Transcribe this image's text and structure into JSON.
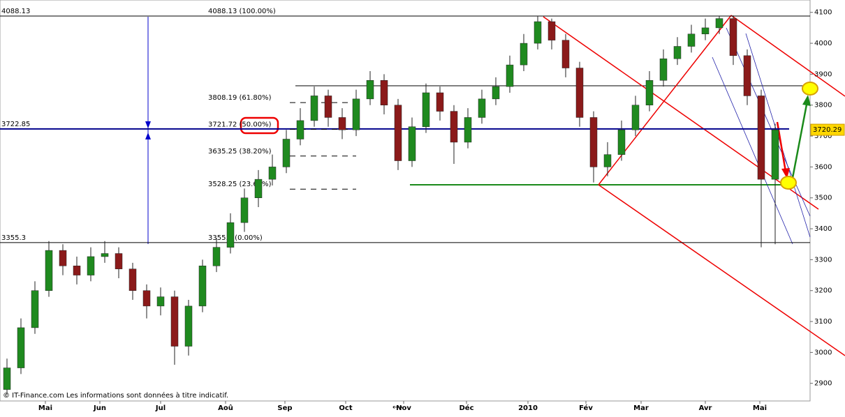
{
  "chart_data": {
    "type": "candlestick",
    "open": [
      2880,
      2950,
      3080,
      3200,
      3330,
      3280,
      3250,
      3310,
      3320,
      3270,
      3200,
      3150,
      3180,
      3020,
      3150,
      3280,
      3340,
      3420,
      3500,
      3560,
      3600,
      3690,
      3750,
      3830,
      3760,
      3720,
      3820,
      3880,
      3800,
      3620,
      3730,
      3840,
      3780,
      3680,
      3760,
      3820,
      3860,
      3930,
      4000,
      4070,
      4010,
      3920,
      3760,
      3600,
      3640,
      3720,
      3800,
      3880,
      3950,
      3990,
      4030,
      4050,
      4080,
      3960,
      3830,
      3560
    ],
    "high": [
      2980,
      3110,
      3230,
      3360,
      3350,
      3310,
      3340,
      3360,
      3340,
      3290,
      3220,
      3210,
      3200,
      3170,
      3300,
      3370,
      3450,
      3530,
      3590,
      3640,
      3720,
      3790,
      3860,
      3850,
      3790,
      3850,
      3910,
      3900,
      3820,
      3760,
      3870,
      3860,
      3800,
      3790,
      3850,
      3890,
      3960,
      4030,
      4088,
      4080,
      4030,
      3940,
      3780,
      3680,
      3750,
      3830,
      3910,
      3980,
      4020,
      4060,
      4080,
      4088,
      4090,
      3980,
      3850,
      3740
    ],
    "low": [
      2860,
      2930,
      3060,
      3180,
      3250,
      3220,
      3230,
      3290,
      3240,
      3170,
      3110,
      3120,
      2960,
      2990,
      3130,
      3260,
      3320,
      3390,
      3470,
      3540,
      3580,
      3670,
      3730,
      3730,
      3690,
      3700,
      3800,
      3770,
      3590,
      3600,
      3710,
      3750,
      3610,
      3660,
      3740,
      3800,
      3840,
      3910,
      3980,
      3980,
      3890,
      3730,
      3550,
      3570,
      3620,
      3700,
      3780,
      3860,
      3930,
      3970,
      4010,
      4030,
      3930,
      3800,
      3340,
      3350
    ],
    "close": [
      2950,
      3080,
      3200,
      3330,
      3280,
      3250,
      3310,
      3320,
      3270,
      3200,
      3150,
      3180,
      3020,
      3150,
      3280,
      3340,
      3420,
      3500,
      3560,
      3600,
      3690,
      3750,
      3830,
      3760,
      3720,
      3820,
      3880,
      3800,
      3620,
      3730,
      3840,
      3780,
      3680,
      3760,
      3820,
      3860,
      3930,
      4000,
      4070,
      4010,
      3920,
      3760,
      3600,
      3640,
      3720,
      3800,
      3880,
      3950,
      3990,
      4030,
      4050,
      4080,
      3960,
      3830,
      3560,
      3720
    ],
    "up_color": "#1f8a1f",
    "down_color": "#8b1a1a",
    "xlim": [
      -0.5,
      57.5
    ],
    "xticks": [
      {
        "value": 2.75,
        "label": "Mai"
      },
      {
        "value": 6.65,
        "label": "Jun"
      },
      {
        "value": 11,
        "label": "Jul"
      },
      {
        "value": 15.65,
        "label": "Aoû"
      },
      {
        "value": 19.9,
        "label": "Sep"
      },
      {
        "value": 24.25,
        "label": "Oct"
      },
      {
        "value": 28.4,
        "label": "Nov"
      },
      {
        "value": 32.9,
        "label": "Déc"
      },
      {
        "value": 37.3,
        "label": "2010"
      },
      {
        "value": 41.45,
        "label": "Fév"
      },
      {
        "value": 45.4,
        "label": "Mar"
      },
      {
        "value": 50,
        "label": "Avr"
      },
      {
        "value": 53.9,
        "label": "Mai"
      }
    ],
    "ylim": [
      2843,
      4140
    ],
    "yticks": [
      2900,
      3000,
      3100,
      3200,
      3300,
      3400,
      3500,
      3600,
      3700,
      3800,
      3900,
      4000,
      4100
    ],
    "levels": [
      4088.13,
      3722.85,
      3355.3
    ],
    "level_colors": [
      "#000000",
      "#00008b",
      "#000000"
    ],
    "fib_levels": [
      {
        "value": 4088.13,
        "label": "4088.13 (100.00%)"
      },
      {
        "value": 3808.19,
        "label": "3808.19 (61.80%)"
      },
      {
        "value": 3721.72,
        "label": "3721.72 (50.00%)"
      },
      {
        "value": 3635.25,
        "label": "3635.25 (38.20%)"
      },
      {
        "value": 3528.25,
        "label": "3528.25 (23.60%)"
      },
      {
        "value": 3355.3,
        "label": "3355.3 (0.00%)"
      }
    ],
    "last_price": 3720.29,
    "footer": "© IT-Finance.com Les informations sont données à titre indicatif."
  }
}
